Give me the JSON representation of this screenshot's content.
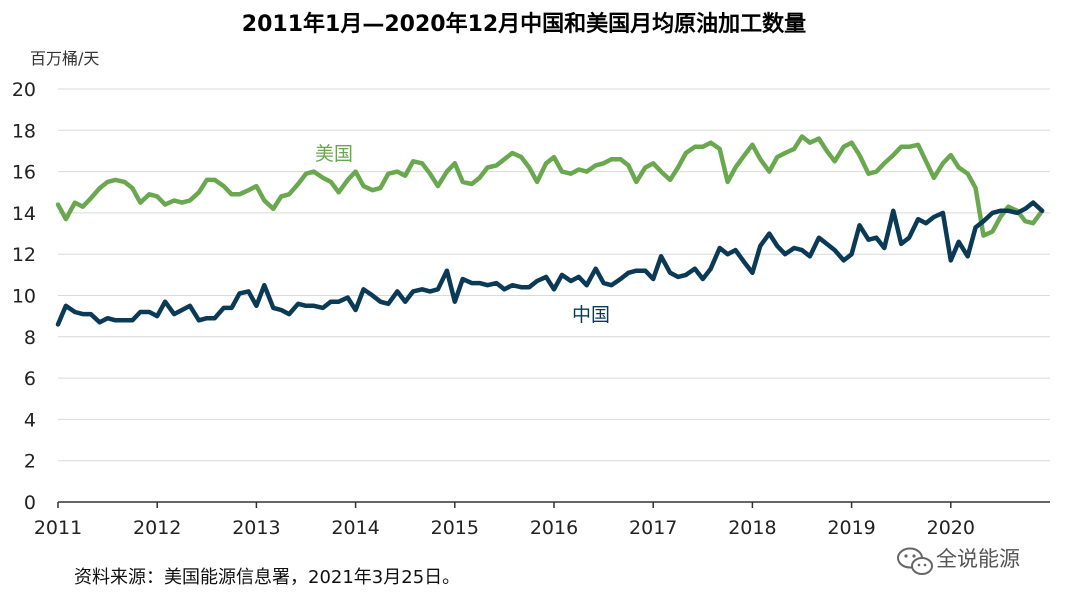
{
  "chart_data": {
    "type": "line",
    "title": "2011年1月—2020年12月中国和美国月均原油加工数量",
    "ylabel": "百万桶/天",
    "xlabel": "",
    "ylim": [
      0,
      20
    ],
    "yticks": [
      "0",
      "2",
      "4",
      "6",
      "8",
      "10",
      "12",
      "14",
      "16",
      "18",
      "20"
    ],
    "xticks": [
      "2011",
      "2012",
      "2013",
      "2014",
      "2015",
      "2016",
      "2017",
      "2018",
      "2019",
      "2020"
    ],
    "xlim": [
      2011,
      2021
    ],
    "grid": true,
    "legend": "inline labels",
    "series": [
      {
        "name": "美国",
        "color": "#6aa84f",
        "points": [
          [
            2011.0,
            14.4
          ],
          [
            2011.08,
            13.7
          ],
          [
            2011.17,
            14.5
          ],
          [
            2011.25,
            14.3
          ],
          [
            2011.33,
            14.7
          ],
          [
            2011.42,
            15.2
          ],
          [
            2011.5,
            15.5
          ],
          [
            2011.58,
            15.6
          ],
          [
            2011.67,
            15.5
          ],
          [
            2011.75,
            15.2
          ],
          [
            2011.83,
            14.5
          ],
          [
            2011.92,
            14.9
          ],
          [
            2012.0,
            14.8
          ],
          [
            2012.08,
            14.4
          ],
          [
            2012.17,
            14.6
          ],
          [
            2012.25,
            14.5
          ],
          [
            2012.33,
            14.6
          ],
          [
            2012.42,
            15.0
          ],
          [
            2012.5,
            15.6
          ],
          [
            2012.58,
            15.6
          ],
          [
            2012.67,
            15.3
          ],
          [
            2012.75,
            14.9
          ],
          [
            2012.83,
            14.9
          ],
          [
            2012.92,
            15.1
          ],
          [
            2013.0,
            15.3
          ],
          [
            2013.08,
            14.6
          ],
          [
            2013.17,
            14.2
          ],
          [
            2013.25,
            14.8
          ],
          [
            2013.33,
            14.9
          ],
          [
            2013.42,
            15.4
          ],
          [
            2013.5,
            15.9
          ],
          [
            2013.58,
            16.0
          ],
          [
            2013.67,
            15.7
          ],
          [
            2013.75,
            15.5
          ],
          [
            2013.83,
            15.0
          ],
          [
            2013.92,
            15.6
          ],
          [
            2014.0,
            16.0
          ],
          [
            2014.08,
            15.3
          ],
          [
            2014.17,
            15.1
          ],
          [
            2014.25,
            15.2
          ],
          [
            2014.33,
            15.9
          ],
          [
            2014.42,
            16.0
          ],
          [
            2014.5,
            15.8
          ],
          [
            2014.58,
            16.5
          ],
          [
            2014.67,
            16.4
          ],
          [
            2014.75,
            15.9
          ],
          [
            2014.83,
            15.3
          ],
          [
            2014.92,
            16.0
          ],
          [
            2015.0,
            16.4
          ],
          [
            2015.08,
            15.5
          ],
          [
            2015.17,
            15.4
          ],
          [
            2015.25,
            15.7
          ],
          [
            2015.33,
            16.2
          ],
          [
            2015.42,
            16.3
          ],
          [
            2015.5,
            16.6
          ],
          [
            2015.58,
            16.9
          ],
          [
            2015.67,
            16.7
          ],
          [
            2015.75,
            16.2
          ],
          [
            2015.83,
            15.5
          ],
          [
            2015.92,
            16.4
          ],
          [
            2016.0,
            16.7
          ],
          [
            2016.08,
            16.0
          ],
          [
            2016.17,
            15.9
          ],
          [
            2016.25,
            16.1
          ],
          [
            2016.33,
            16.0
          ],
          [
            2016.42,
            16.3
          ],
          [
            2016.5,
            16.4
          ],
          [
            2016.58,
            16.6
          ],
          [
            2016.67,
            16.6
          ],
          [
            2016.75,
            16.3
          ],
          [
            2016.83,
            15.5
          ],
          [
            2016.92,
            16.2
          ],
          [
            2017.0,
            16.4
          ],
          [
            2017.08,
            16.0
          ],
          [
            2017.17,
            15.6
          ],
          [
            2017.25,
            16.2
          ],
          [
            2017.33,
            16.9
          ],
          [
            2017.42,
            17.2
          ],
          [
            2017.5,
            17.2
          ],
          [
            2017.58,
            17.4
          ],
          [
            2017.67,
            17.1
          ],
          [
            2017.75,
            15.5
          ],
          [
            2017.83,
            16.2
          ],
          [
            2017.92,
            16.8
          ],
          [
            2018.0,
            17.3
          ],
          [
            2018.08,
            16.6
          ],
          [
            2018.17,
            16.0
          ],
          [
            2018.25,
            16.7
          ],
          [
            2018.33,
            16.9
          ],
          [
            2018.42,
            17.1
          ],
          [
            2018.5,
            17.7
          ],
          [
            2018.58,
            17.4
          ],
          [
            2018.67,
            17.6
          ],
          [
            2018.75,
            17.0
          ],
          [
            2018.83,
            16.5
          ],
          [
            2018.92,
            17.2
          ],
          [
            2019.0,
            17.4
          ],
          [
            2019.08,
            16.8
          ],
          [
            2019.17,
            15.9
          ],
          [
            2019.25,
            16.0
          ],
          [
            2019.33,
            16.4
          ],
          [
            2019.42,
            16.8
          ],
          [
            2019.5,
            17.2
          ],
          [
            2019.58,
            17.2
          ],
          [
            2019.67,
            17.3
          ],
          [
            2019.75,
            16.5
          ],
          [
            2019.83,
            15.7
          ],
          [
            2019.92,
            16.4
          ],
          [
            2020.0,
            16.8
          ],
          [
            2020.08,
            16.2
          ],
          [
            2020.17,
            15.9
          ],
          [
            2020.25,
            15.2
          ],
          [
            2020.33,
            12.9
          ],
          [
            2020.42,
            13.1
          ],
          [
            2020.5,
            13.8
          ],
          [
            2020.58,
            14.3
          ],
          [
            2020.67,
            14.1
          ],
          [
            2020.75,
            13.6
          ],
          [
            2020.83,
            13.5
          ],
          [
            2020.92,
            14.1
          ]
        ]
      },
      {
        "name": "中国",
        "color": "#0b3a57",
        "points": [
          [
            2011.0,
            8.6
          ],
          [
            2011.08,
            9.5
          ],
          [
            2011.17,
            9.2
          ],
          [
            2011.25,
            9.1
          ],
          [
            2011.33,
            9.1
          ],
          [
            2011.42,
            8.7
          ],
          [
            2011.5,
            8.9
          ],
          [
            2011.58,
            8.8
          ],
          [
            2011.67,
            8.8
          ],
          [
            2011.75,
            8.8
          ],
          [
            2011.83,
            9.2
          ],
          [
            2011.92,
            9.2
          ],
          [
            2012.0,
            9.0
          ],
          [
            2012.08,
            9.7
          ],
          [
            2012.17,
            9.1
          ],
          [
            2012.25,
            9.3
          ],
          [
            2012.33,
            9.5
          ],
          [
            2012.42,
            8.8
          ],
          [
            2012.5,
            8.9
          ],
          [
            2012.58,
            8.9
          ],
          [
            2012.67,
            9.4
          ],
          [
            2012.75,
            9.4
          ],
          [
            2012.83,
            10.1
          ],
          [
            2012.92,
            10.2
          ],
          [
            2013.0,
            9.5
          ],
          [
            2013.08,
            10.5
          ],
          [
            2013.17,
            9.4
          ],
          [
            2013.25,
            9.3
          ],
          [
            2013.33,
            9.1
          ],
          [
            2013.42,
            9.6
          ],
          [
            2013.5,
            9.5
          ],
          [
            2013.58,
            9.5
          ],
          [
            2013.67,
            9.4
          ],
          [
            2013.75,
            9.7
          ],
          [
            2013.83,
            9.7
          ],
          [
            2013.92,
            9.9
          ],
          [
            2014.0,
            9.3
          ],
          [
            2014.08,
            10.3
          ],
          [
            2014.17,
            10.0
          ],
          [
            2014.25,
            9.7
          ],
          [
            2014.33,
            9.6
          ],
          [
            2014.42,
            10.2
          ],
          [
            2014.5,
            9.7
          ],
          [
            2014.58,
            10.2
          ],
          [
            2014.67,
            10.3
          ],
          [
            2014.75,
            10.2
          ],
          [
            2014.83,
            10.3
          ],
          [
            2014.92,
            11.2
          ],
          [
            2015.0,
            9.7
          ],
          [
            2015.08,
            10.8
          ],
          [
            2015.17,
            10.6
          ],
          [
            2015.25,
            10.6
          ],
          [
            2015.33,
            10.5
          ],
          [
            2015.42,
            10.6
          ],
          [
            2015.5,
            10.3
          ],
          [
            2015.58,
            10.5
          ],
          [
            2015.67,
            10.4
          ],
          [
            2015.75,
            10.4
          ],
          [
            2015.83,
            10.7
          ],
          [
            2015.92,
            10.9
          ],
          [
            2016.0,
            10.3
          ],
          [
            2016.08,
            11.0
          ],
          [
            2016.17,
            10.7
          ],
          [
            2016.25,
            10.9
          ],
          [
            2016.33,
            10.5
          ],
          [
            2016.42,
            11.3
          ],
          [
            2016.5,
            10.6
          ],
          [
            2016.58,
            10.5
          ],
          [
            2016.67,
            10.8
          ],
          [
            2016.75,
            11.1
          ],
          [
            2016.83,
            11.2
          ],
          [
            2016.92,
            11.2
          ],
          [
            2017.0,
            10.8
          ],
          [
            2017.08,
            11.9
          ],
          [
            2017.17,
            11.1
          ],
          [
            2017.25,
            10.9
          ],
          [
            2017.33,
            11.0
          ],
          [
            2017.42,
            11.3
          ],
          [
            2017.5,
            10.8
          ],
          [
            2017.58,
            11.3
          ],
          [
            2017.67,
            12.3
          ],
          [
            2017.75,
            12.0
          ],
          [
            2017.83,
            12.2
          ],
          [
            2017.92,
            11.6
          ],
          [
            2018.0,
            11.1
          ],
          [
            2018.08,
            12.4
          ],
          [
            2018.17,
            13.0
          ],
          [
            2018.25,
            12.4
          ],
          [
            2018.33,
            12.0
          ],
          [
            2018.42,
            12.3
          ],
          [
            2018.5,
            12.2
          ],
          [
            2018.58,
            11.9
          ],
          [
            2018.67,
            12.8
          ],
          [
            2018.75,
            12.5
          ],
          [
            2018.83,
            12.2
          ],
          [
            2018.92,
            11.7
          ],
          [
            2019.0,
            12.0
          ],
          [
            2019.08,
            13.4
          ],
          [
            2019.17,
            12.7
          ],
          [
            2019.25,
            12.8
          ],
          [
            2019.33,
            12.3
          ],
          [
            2019.42,
            14.1
          ],
          [
            2019.5,
            12.5
          ],
          [
            2019.58,
            12.8
          ],
          [
            2019.67,
            13.7
          ],
          [
            2019.75,
            13.5
          ],
          [
            2019.83,
            13.8
          ],
          [
            2019.92,
            14.0
          ],
          [
            2020.0,
            11.7
          ],
          [
            2020.08,
            12.6
          ],
          [
            2020.17,
            11.9
          ],
          [
            2020.25,
            13.3
          ],
          [
            2020.33,
            13.6
          ],
          [
            2020.42,
            14.0
          ],
          [
            2020.5,
            14.1
          ],
          [
            2020.58,
            14.1
          ],
          [
            2020.67,
            14.0
          ],
          [
            2020.75,
            14.2
          ],
          [
            2020.83,
            14.5
          ],
          [
            2020.92,
            14.1
          ]
        ]
      }
    ]
  },
  "source_note": "资料来源：美国能源信息署，2021年3月25日。",
  "watermark": {
    "text": "全说能源",
    "icon": "wechat-icon"
  }
}
